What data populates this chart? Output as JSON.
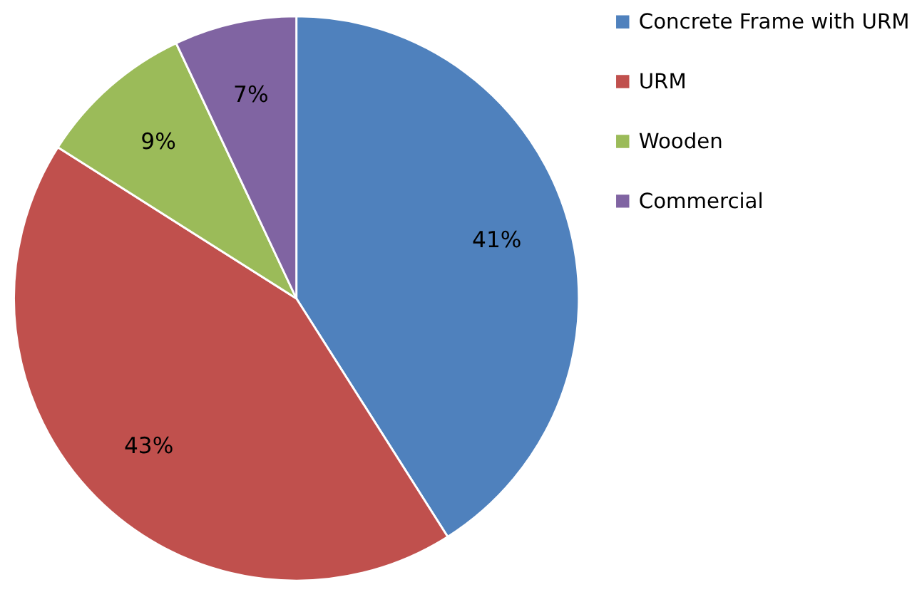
{
  "chart_data": {
    "type": "pie",
    "categories": [
      "Concrete Frame with URM",
      "URM",
      "Wooden",
      "Commercial"
    ],
    "values": [
      41,
      43,
      9,
      7
    ],
    "colors": [
      "#4f81bd",
      "#c0504d",
      "#9bbb59",
      "#8064a2"
    ],
    "value_labels": [
      "41%",
      "43%",
      "9%",
      "7%"
    ],
    "legend": "right"
  }
}
